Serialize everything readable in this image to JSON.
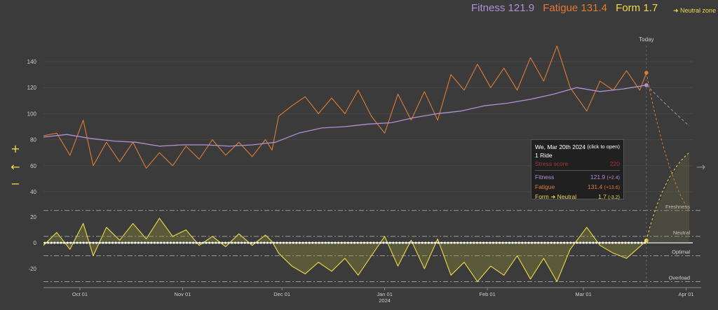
{
  "legend": {
    "fitness": "Fitness 121.9",
    "fatigue": "Fatigue 131.4",
    "form": "Form 1.7",
    "neutral_zone": "➜ Neutral zone"
  },
  "colors": {
    "fitness": "#b48fd6",
    "fatigue": "#e07b34",
    "form": "#f0d94a",
    "background": "#3b3b3b"
  },
  "controls": {
    "zoom_in": "+",
    "back": "←",
    "zoom_out": "−",
    "next": "→"
  },
  "tooltip": {
    "date": "We, Mar 20th 2024",
    "open_hint": "(click to open)",
    "rides": "1 Ride",
    "stress_label": "Stress score",
    "stress_value": "220",
    "fitness_label": "Fitness",
    "fitness_value": "121.9",
    "fitness_delta": "(+2.4)",
    "fatigue_label": "Fatigue",
    "fatigue_value": "131.4",
    "fatigue_delta": "(+13.6)",
    "form_label": "Form ➜ Neutral",
    "form_value": "1.7",
    "form_delta": "(-3.2)"
  },
  "chart_data": {
    "type": "line",
    "today_label": "Today",
    "x_ticks": [
      "Oct 01",
      "Nov 01",
      "Dec 01",
      "Jan 01",
      "Feb 01",
      "Mar 01",
      "Apr 01"
    ],
    "x_tick_sub": {
      "Jan 01": "2024"
    },
    "y_ticks_upper": [
      40,
      60,
      80,
      100,
      120,
      140
    ],
    "y_ticks_lower": [
      -20,
      0,
      20
    ],
    "upper_ylim": [
      30,
      155
    ],
    "lower_ylim": [
      -32,
      27
    ],
    "zones": [
      {
        "label": "Freshness",
        "value": 25
      },
      {
        "label": "Neutral",
        "value": 5
      },
      {
        "label": "Optimal",
        "value": -10
      },
      {
        "label": "Overload",
        "value": -30
      }
    ],
    "series": [
      {
        "name": "Fitness",
        "color": "#b48fd6",
        "points": [
          [
            "2023-09-20",
            82
          ],
          [
            "2023-09-27",
            84
          ],
          [
            "2023-10-04",
            81
          ],
          [
            "2023-10-11",
            79
          ],
          [
            "2023-10-18",
            78
          ],
          [
            "2023-10-25",
            75
          ],
          [
            "2023-11-01",
            76
          ],
          [
            "2023-11-08",
            76
          ],
          [
            "2023-11-15",
            75
          ],
          [
            "2023-11-22",
            76
          ],
          [
            "2023-11-29",
            78
          ],
          [
            "2023-12-06",
            85
          ],
          [
            "2023-12-13",
            89
          ],
          [
            "2023-12-20",
            90
          ],
          [
            "2023-12-27",
            92
          ],
          [
            "2024-01-03",
            93
          ],
          [
            "2024-01-10",
            97
          ],
          [
            "2024-01-17",
            100
          ],
          [
            "2024-01-24",
            102
          ],
          [
            "2024-01-31",
            106
          ],
          [
            "2024-02-07",
            108
          ],
          [
            "2024-02-14",
            111
          ],
          [
            "2024-02-21",
            115
          ],
          [
            "2024-02-28",
            120
          ],
          [
            "2024-03-06",
            117
          ],
          [
            "2024-03-13",
            119
          ],
          [
            "2024-03-20",
            121.9
          ]
        ]
      },
      {
        "name": "Fatigue",
        "color": "#e07b34",
        "points": [
          [
            "2023-09-20",
            83
          ],
          [
            "2023-09-24",
            85
          ],
          [
            "2023-09-28",
            68
          ],
          [
            "2023-10-02",
            95
          ],
          [
            "2023-10-05",
            60
          ],
          [
            "2023-10-09",
            78
          ],
          [
            "2023-10-13",
            63
          ],
          [
            "2023-10-17",
            78
          ],
          [
            "2023-10-21",
            58
          ],
          [
            "2023-10-25",
            70
          ],
          [
            "2023-10-29",
            60
          ],
          [
            "2023-11-02",
            75
          ],
          [
            "2023-11-06",
            65
          ],
          [
            "2023-11-10",
            80
          ],
          [
            "2023-11-14",
            68
          ],
          [
            "2023-11-18",
            78
          ],
          [
            "2023-11-22",
            67
          ],
          [
            "2023-11-26",
            80
          ],
          [
            "2023-11-28",
            72
          ],
          [
            "2023-11-30",
            98
          ],
          [
            "2023-12-04",
            106
          ],
          [
            "2023-12-08",
            113
          ],
          [
            "2023-12-12",
            100
          ],
          [
            "2023-12-16",
            112
          ],
          [
            "2023-12-20",
            100
          ],
          [
            "2023-12-24",
            118
          ],
          [
            "2023-12-28",
            98
          ],
          [
            "2024-01-01",
            85
          ],
          [
            "2024-01-05",
            115
          ],
          [
            "2024-01-09",
            95
          ],
          [
            "2024-01-13",
            117
          ],
          [
            "2024-01-17",
            95
          ],
          [
            "2024-01-21",
            130
          ],
          [
            "2024-01-25",
            118
          ],
          [
            "2024-01-29",
            138
          ],
          [
            "2024-02-02",
            120
          ],
          [
            "2024-02-06",
            135
          ],
          [
            "2024-02-10",
            118
          ],
          [
            "2024-02-14",
            143
          ],
          [
            "2024-02-18",
            125
          ],
          [
            "2024-02-22",
            152
          ],
          [
            "2024-02-26",
            120
          ],
          [
            "2024-03-02",
            102
          ],
          [
            "2024-03-06",
            125
          ],
          [
            "2024-03-10",
            118
          ],
          [
            "2024-03-14",
            133
          ],
          [
            "2024-03-18",
            118
          ],
          [
            "2024-03-20",
            131.4
          ]
        ]
      },
      {
        "name": "Form",
        "color": "#f0d94a",
        "points": [
          [
            "2023-09-20",
            -2
          ],
          [
            "2023-09-24",
            8
          ],
          [
            "2023-09-28",
            -5
          ],
          [
            "2023-10-02",
            15
          ],
          [
            "2023-10-05",
            -10
          ],
          [
            "2023-10-09",
            12
          ],
          [
            "2023-10-13",
            2
          ],
          [
            "2023-10-17",
            15
          ],
          [
            "2023-10-21",
            3
          ],
          [
            "2023-10-25",
            19
          ],
          [
            "2023-10-29",
            5
          ],
          [
            "2023-11-02",
            10
          ],
          [
            "2023-11-06",
            -2
          ],
          [
            "2023-11-10",
            5
          ],
          [
            "2023-11-14",
            -3
          ],
          [
            "2023-11-18",
            7
          ],
          [
            "2023-11-22",
            -2
          ],
          [
            "2023-11-26",
            6
          ],
          [
            "2023-11-28",
            1
          ],
          [
            "2023-11-30",
            -8
          ],
          [
            "2023-12-04",
            -18
          ],
          [
            "2023-12-08",
            -24
          ],
          [
            "2023-12-12",
            -15
          ],
          [
            "2023-12-16",
            -22
          ],
          [
            "2023-12-20",
            -12
          ],
          [
            "2023-12-24",
            -25
          ],
          [
            "2023-12-28",
            -10
          ],
          [
            "2024-01-01",
            5
          ],
          [
            "2024-01-05",
            -18
          ],
          [
            "2024-01-09",
            2
          ],
          [
            "2024-01-13",
            -20
          ],
          [
            "2024-01-17",
            3
          ],
          [
            "2024-01-21",
            -25
          ],
          [
            "2024-01-25",
            -15
          ],
          [
            "2024-01-29",
            -30
          ],
          [
            "2024-02-02",
            -18
          ],
          [
            "2024-02-06",
            -25
          ],
          [
            "2024-02-10",
            -10
          ],
          [
            "2024-02-14",
            -28
          ],
          [
            "2024-02-18",
            -12
          ],
          [
            "2024-02-22",
            -30
          ],
          [
            "2024-02-26",
            -5
          ],
          [
            "2024-03-02",
            12
          ],
          [
            "2024-03-06",
            -2
          ],
          [
            "2024-03-10",
            -8
          ],
          [
            "2024-03-14",
            -12
          ],
          [
            "2024-03-18",
            -3
          ],
          [
            "2024-03-20",
            1.7
          ]
        ]
      }
    ]
  }
}
